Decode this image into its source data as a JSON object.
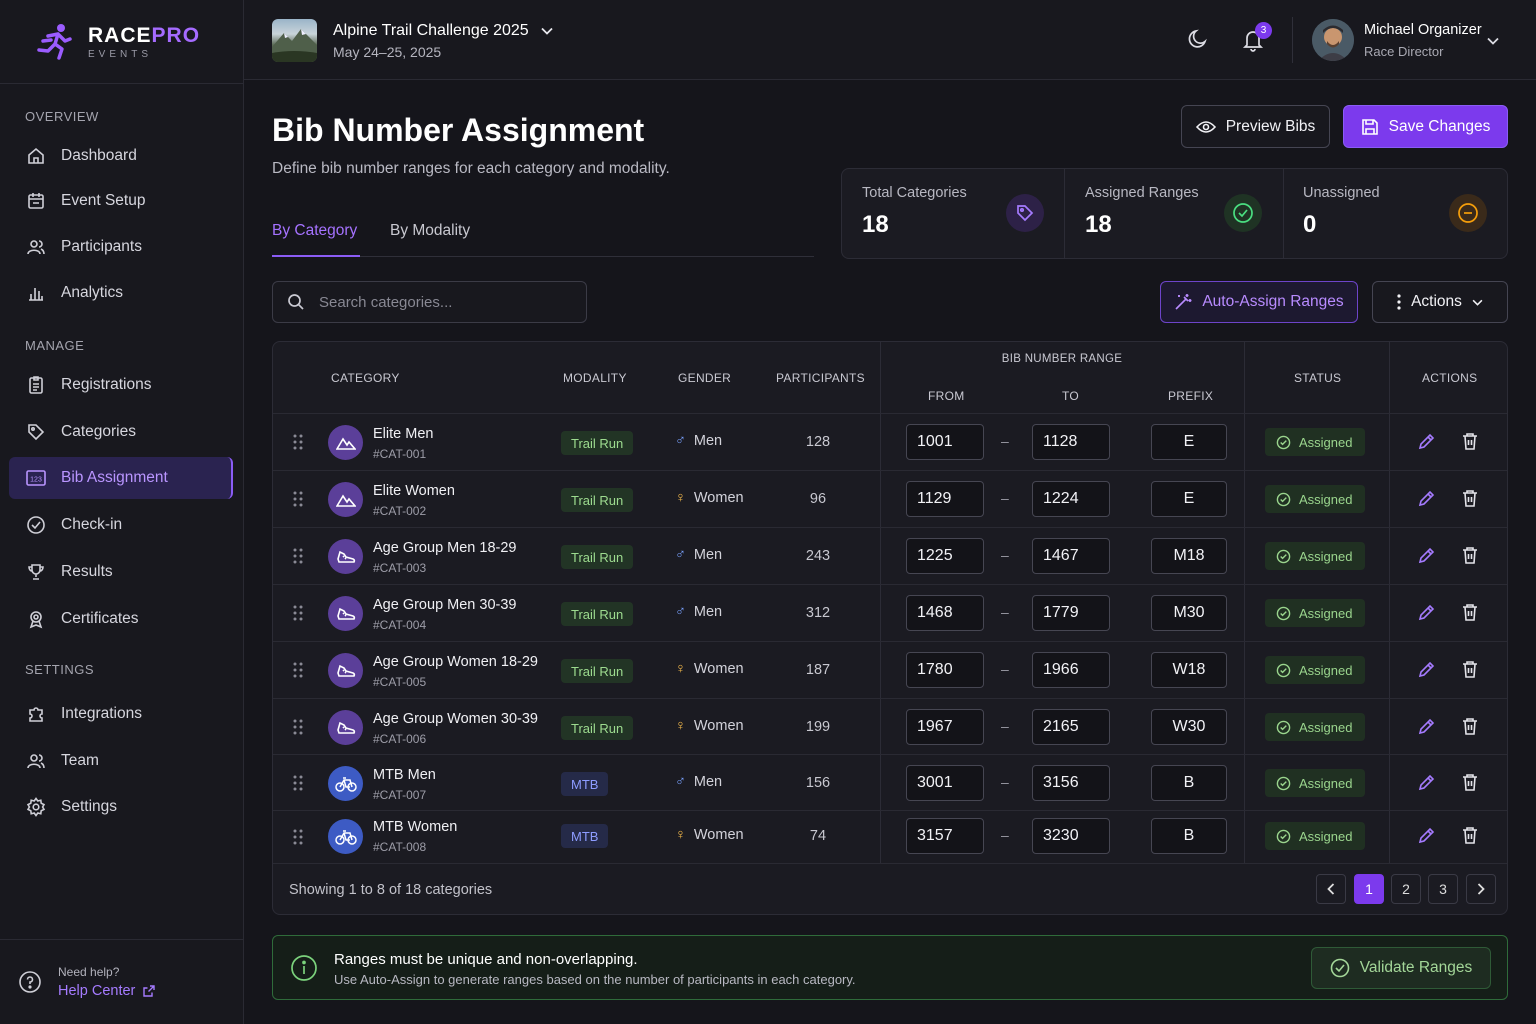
{
  "brand": {
    "name_part1": "RACE",
    "name_part2": "PRO",
    "tagline": "EVENTS"
  },
  "sidebar": {
    "sections": [
      {
        "label": "OVERVIEW"
      },
      {
        "label": "MANAGE"
      },
      {
        "label": "SETTINGS"
      }
    ],
    "items": [
      {
        "label": "Dashboard",
        "icon": "home-icon"
      },
      {
        "label": "Event Setup",
        "icon": "calendar-icon"
      },
      {
        "label": "Participants",
        "icon": "users-icon"
      },
      {
        "label": "Analytics",
        "icon": "bar-chart-icon"
      },
      {
        "label": "Registrations",
        "icon": "clipboard-icon"
      },
      {
        "label": "Categories",
        "icon": "tag-icon"
      },
      {
        "label": "Bib Assignment",
        "icon": "bib-icon",
        "active": true
      },
      {
        "label": "Check-in",
        "icon": "check-circle-icon"
      },
      {
        "label": "Results",
        "icon": "trophy-icon"
      },
      {
        "label": "Certificates",
        "icon": "award-icon"
      },
      {
        "label": "Integrations",
        "icon": "puzzle-icon"
      },
      {
        "label": "Team",
        "icon": "team-icon"
      },
      {
        "label": "Settings",
        "icon": "gear-icon"
      }
    ],
    "help": {
      "title": "Need help?",
      "link": "Help Center"
    }
  },
  "topbar": {
    "event_title": "Alpine Trail Challenge 2025",
    "event_dates": "May 24–25, 2025",
    "notification_count": "3",
    "user_name": "Michael Organizer",
    "user_role": "Race Director"
  },
  "page": {
    "title": "Bib Number Assignment",
    "subtitle": "Define bib number ranges for each category and modality.",
    "tabs": [
      "By Category",
      "By Modality"
    ],
    "preview_button": "Preview Bibs",
    "save_button": "Save Changes",
    "search_placeholder": "Search categories...",
    "auto_assign_button": "Auto-Assign Ranges",
    "actions_button": "Actions"
  },
  "stats": [
    {
      "label": "Total Categories",
      "value": "18",
      "color": "#a57bff"
    },
    {
      "label": "Assigned Ranges",
      "value": "18",
      "color": "#4ade80"
    },
    {
      "label": "Unassigned",
      "value": "0",
      "color": "#f59e0b"
    }
  ],
  "table": {
    "headers": {
      "category": "CATEGORY",
      "modality": "MODALITY",
      "gender": "GENDER",
      "participants": "PARTICIPANTS",
      "range_group": "BIB NUMBER RANGE",
      "from": "FROM",
      "to": "TO",
      "prefix": "PREFIX",
      "status": "STATUS",
      "actions": "ACTIONS"
    },
    "rows": [
      {
        "name": "Elite Men",
        "code": "#CAT-001",
        "modality": "Trail Run",
        "gender": "Men",
        "participants": "128",
        "from": "1001",
        "to": "1128",
        "prefix": "E",
        "status": "Assigned",
        "icon": "mountain-icon"
      },
      {
        "name": "Elite Women",
        "code": "#CAT-002",
        "modality": "Trail Run",
        "gender": "Women",
        "participants": "96",
        "from": "1129",
        "to": "1224",
        "prefix": "E",
        "status": "Assigned",
        "icon": "mountain-icon"
      },
      {
        "name": "Age Group Men 18-29",
        "code": "#CAT-003",
        "modality": "Trail Run",
        "gender": "Men",
        "participants": "243",
        "from": "1225",
        "to": "1467",
        "prefix": "M18",
        "status": "Assigned",
        "icon": "shoe-icon"
      },
      {
        "name": "Age Group Men 30-39",
        "code": "#CAT-004",
        "modality": "Trail Run",
        "gender": "Men",
        "participants": "312",
        "from": "1468",
        "to": "1779",
        "prefix": "M30",
        "status": "Assigned",
        "icon": "shoe-icon"
      },
      {
        "name": "Age Group Women 18-29",
        "code": "#CAT-005",
        "modality": "Trail Run",
        "gender": "Women",
        "participants": "187",
        "from": "1780",
        "to": "1966",
        "prefix": "W18",
        "status": "Assigned",
        "icon": "shoe-icon"
      },
      {
        "name": "Age Group Women 30-39",
        "code": "#CAT-006",
        "modality": "Trail Run",
        "gender": "Women",
        "participants": "199",
        "from": "1967",
        "to": "2165",
        "prefix": "W30",
        "status": "Assigned",
        "icon": "shoe-icon"
      },
      {
        "name": "MTB Men",
        "code": "#CAT-007",
        "modality": "MTB",
        "gender": "Men",
        "participants": "156",
        "from": "3001",
        "to": "3156",
        "prefix": "B",
        "status": "Assigned",
        "icon": "bike-icon"
      },
      {
        "name": "MTB Women",
        "code": "#CAT-008",
        "modality": "MTB",
        "gender": "Women",
        "participants": "74",
        "from": "3157",
        "to": "3230",
        "prefix": "B",
        "status": "Assigned",
        "icon": "bike-icon"
      }
    ],
    "footer": "Showing 1 to 8 of 18 categories",
    "pages": [
      "1",
      "2",
      "3"
    ]
  },
  "info": {
    "title": "Ranges must be unique and non-overlapping.",
    "text": "Use Auto-Assign to generate ranges based on the number of participants in each category.",
    "validate_button": "Validate Ranges"
  },
  "colors": {
    "accent": "#7c3aed",
    "success": "#4ade80",
    "background": "#15151b"
  }
}
